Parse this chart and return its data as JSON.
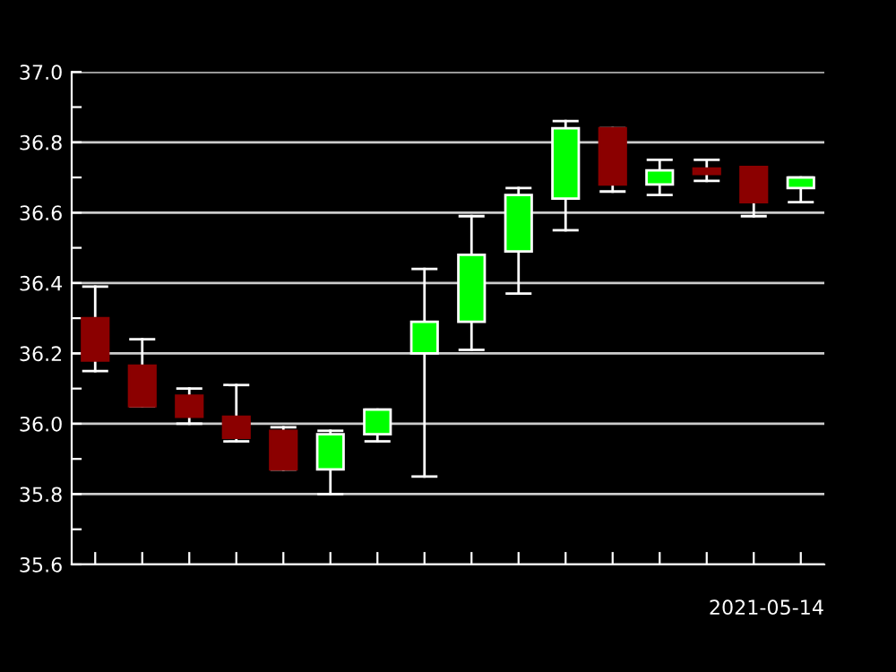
{
  "chart_data": {
    "type": "candlestick",
    "xlabel": "2021-05-14",
    "categories": [
      null,
      null,
      null,
      null,
      null,
      null,
      null,
      null,
      null,
      null,
      null,
      null,
      null,
      null,
      null,
      null
    ],
    "ohlc": [
      [
        36.3,
        36.39,
        36.15,
        36.18
      ],
      [
        36.165,
        36.24,
        36.05,
        36.05
      ],
      [
        36.08,
        36.1,
        36.0,
        36.02
      ],
      [
        36.02,
        36.11,
        35.95,
        35.96
      ],
      [
        35.98,
        35.99,
        35.87,
        35.87
      ],
      [
        35.87,
        35.98,
        35.8,
        35.97
      ],
      [
        35.97,
        36.04,
        35.95,
        36.04
      ],
      [
        36.2,
        36.44,
        35.85,
        36.29
      ],
      [
        36.29,
        36.59,
        36.21,
        36.48
      ],
      [
        36.49,
        36.67,
        36.37,
        36.65
      ],
      [
        36.64,
        36.86,
        36.55,
        36.84
      ],
      [
        36.84,
        36.84,
        36.66,
        36.68
      ],
      [
        36.68,
        36.75,
        36.65,
        36.72
      ],
      [
        36.725,
        36.75,
        36.69,
        36.71
      ],
      [
        36.73,
        36.73,
        36.59,
        36.63
      ],
      [
        36.67,
        36.7,
        36.63,
        36.7
      ]
    ],
    "colors": [
      "#8b0000",
      "#8b0000",
      "#8b0000",
      "#8b0000",
      "#8b0000",
      "#00ff00",
      "#00ff00",
      "#00ff00",
      "#00ff00",
      "#00ff00",
      "#00ff00",
      "#8b0000",
      "#00ff00",
      "#8b0000",
      "#8b0000",
      "#00ff00"
    ],
    "ylim": [
      35.6,
      37.0
    ],
    "yticks": [
      35.6,
      {
        "value": 35.7,
        "label": null
      },
      35.8,
      {
        "value": 35.9,
        "label": null
      },
      {
        "value": 36,
        "label": "36.0"
      },
      {
        "value": 36.1,
        "label": null
      },
      36.2,
      {
        "value": 36.3,
        "label": null
      },
      36.4,
      {
        "value": 36.5,
        "label": null
      },
      36.6,
      {
        "value": 36.7,
        "label": null
      },
      36.8,
      {
        "value": 36.9,
        "label": null
      },
      {
        "value": 37,
        "label": "37.0"
      }
    ],
    "grid": "y",
    "tick_labels": "y"
  }
}
